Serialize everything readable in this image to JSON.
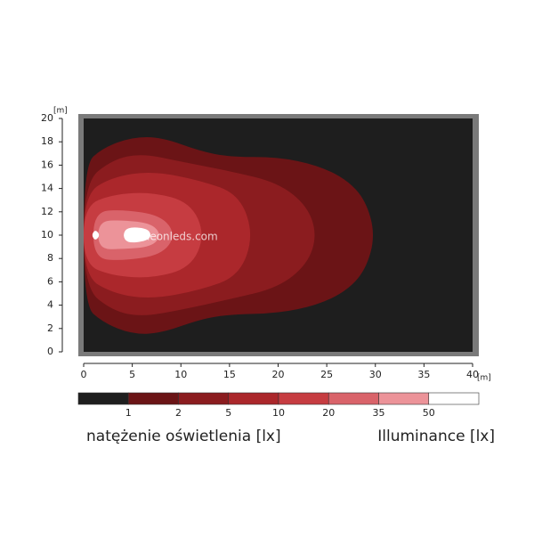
{
  "chart_data": {
    "type": "contour",
    "x_unit": "[m]",
    "y_unit": "[m]",
    "xlim": [
      0,
      40
    ],
    "xticks": [
      0,
      5,
      10,
      15,
      20,
      25,
      30,
      35,
      40
    ],
    "ylim": [
      0,
      20
    ],
    "yticks": [
      0,
      2,
      4,
      6,
      8,
      10,
      12,
      14,
      16,
      18,
      20
    ],
    "watermark": "leonleds.com",
    "levels": [
      1,
      2,
      5,
      10,
      20,
      35,
      50
    ],
    "colors": [
      "#1e1e1e",
      "#6b1416",
      "#8b1c1f",
      "#ab272b",
      "#c63c41",
      "#d9636a",
      "#ec9399",
      "#ffffff"
    ],
    "contours": [
      {
        "level": 1,
        "x": [
          0,
          2,
          5,
          8,
          12,
          15,
          20,
          24,
          27,
          29,
          30,
          29,
          27,
          24,
          20,
          15,
          12,
          8,
          5,
          2,
          0
        ],
        "y": [
          4,
          2.5,
          1.5,
          1.6,
          2.8,
          3.2,
          3.3,
          4,
          5.2,
          7,
          10,
          13,
          14.8,
          16,
          16.7,
          16.7,
          17.2,
          18.4,
          18.4,
          17.5,
          16
        ]
      },
      {
        "level": 2,
        "x": [
          0,
          3,
          6,
          10,
          15,
          20,
          23,
          24,
          23,
          20,
          15,
          10,
          6,
          3,
          0
        ],
        "y": [
          5.5,
          3.5,
          3,
          3.6,
          4.5,
          5.5,
          7.5,
          10,
          12.5,
          14.5,
          15.5,
          16.3,
          17,
          16.5,
          14.5
        ]
      },
      {
        "level": 5,
        "x": [
          0,
          3,
          7,
          12,
          16,
          17.5,
          16,
          12,
          7,
          3,
          0
        ],
        "y": [
          6.5,
          5,
          4.5,
          5.3,
          6.5,
          10,
          13.5,
          14.7,
          15.5,
          15,
          13.5
        ]
      },
      {
        "level": 10,
        "x": [
          0,
          3,
          7,
          11,
          12.5,
          11,
          7,
          3,
          0
        ],
        "y": [
          7.5,
          6.5,
          6.3,
          7.2,
          10,
          12.8,
          13.7,
          13.5,
          12.5
        ]
      },
      {
        "level": 20,
        "x": [
          1,
          4,
          8,
          9.5,
          8,
          4,
          1
        ],
        "y": [
          8,
          7.8,
          8.3,
          10,
          11.7,
          12.2,
          12
        ]
      },
      {
        "level": 35,
        "x": [
          1.5,
          4,
          7,
          8,
          7,
          4,
          1.5
        ],
        "y": [
          8.8,
          8.8,
          9,
          10,
          11,
          11.3,
          11.2
        ]
      },
      {
        "level": 50,
        "x": [
          4.5,
          6.5,
          7,
          6.5,
          4.5,
          4
        ],
        "y": [
          9.3,
          9.5,
          10,
          10.6,
          10.7,
          10
        ]
      },
      {
        "level": 50,
        "x": [
          1.2,
          1.7,
          1.2,
          0.8
        ],
        "y": [
          9.5,
          10,
          10.5,
          10
        ]
      }
    ],
    "legend_title_pl": "natężenie oświetlenia [lx]",
    "legend_title_en": "Illuminance [lx]"
  }
}
